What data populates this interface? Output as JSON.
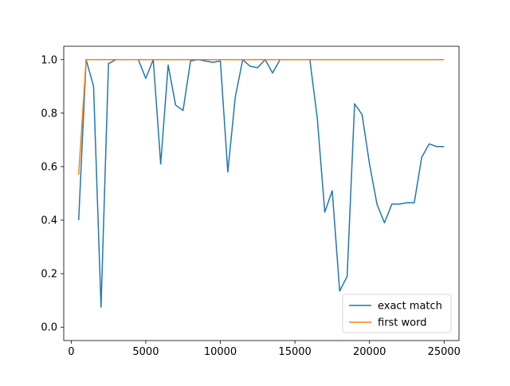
{
  "chart_data": {
    "type": "line",
    "title": "",
    "xlabel": "",
    "ylabel": "",
    "xlim": [
      -500,
      26000
    ],
    "ylim": [
      -0.05,
      1.05
    ],
    "x_ticks": [
      0,
      5000,
      10000,
      15000,
      20000,
      25000
    ],
    "y_ticks": [
      0.0,
      0.2,
      0.4,
      0.6,
      0.8,
      1.0
    ],
    "x_tick_labels": [
      "0",
      "5000",
      "10000",
      "15000",
      "20000",
      "25000"
    ],
    "y_tick_labels": [
      "0.0",
      "0.2",
      "0.4",
      "0.6",
      "0.8",
      "1.0"
    ],
    "grid": false,
    "legend_position": "lower-right",
    "series": [
      {
        "name": "exact match",
        "color": "#1f77b4",
        "x": [
          500,
          1000,
          1500,
          2000,
          2500,
          3000,
          3500,
          4000,
          4500,
          5000,
          5500,
          6000,
          6500,
          7000,
          7500,
          8000,
          8500,
          9000,
          9500,
          10000,
          10500,
          11000,
          11500,
          12000,
          12500,
          13000,
          13500,
          14000,
          14500,
          15000,
          15500,
          16000,
          16500,
          17000,
          17500,
          18000,
          18500,
          19000,
          19500,
          20000,
          20500,
          21000,
          21500,
          22000,
          22500,
          23000,
          23500,
          24000,
          24500,
          25000
        ],
        "y": [
          0.4,
          1.0,
          0.9,
          0.075,
          0.985,
          1.0,
          1.0,
          1.0,
          1.0,
          0.93,
          1.0,
          0.61,
          0.98,
          0.83,
          0.81,
          0.995,
          1.0,
          0.995,
          0.99,
          0.995,
          0.58,
          0.86,
          1.0,
          0.975,
          0.97,
          1.0,
          0.95,
          1.0,
          1.0,
          1.0,
          1.0,
          1.0,
          0.78,
          0.43,
          0.51,
          0.135,
          0.19,
          0.835,
          0.795,
          0.61,
          0.46,
          0.39,
          0.46,
          0.46,
          0.465,
          0.465,
          0.635,
          0.685,
          0.675,
          0.675
        ]
      },
      {
        "name": "first word",
        "color": "#ff7f0e",
        "x": [
          500,
          1000,
          1500,
          2000,
          2500,
          3000,
          3500,
          4000,
          4500,
          5000,
          5500,
          6000,
          6500,
          7000,
          7500,
          8000,
          8500,
          9000,
          9500,
          10000,
          10500,
          11000,
          11500,
          12000,
          12500,
          13000,
          13500,
          14000,
          14500,
          15000,
          15500,
          16000,
          16500,
          17000,
          17500,
          18000,
          18500,
          19000,
          19500,
          20000,
          20500,
          21000,
          21500,
          22000,
          22500,
          23000,
          23500,
          24000,
          24500,
          25000
        ],
        "y": [
          0.57,
          1.0,
          1.0,
          1.0,
          1.0,
          1.0,
          1.0,
          1.0,
          1.0,
          1.0,
          1.0,
          1.0,
          1.0,
          1.0,
          1.0,
          1.0,
          1.0,
          1.0,
          1.0,
          1.0,
          1.0,
          1.0,
          1.0,
          1.0,
          1.0,
          1.0,
          1.0,
          1.0,
          1.0,
          1.0,
          1.0,
          1.0,
          1.0,
          1.0,
          1.0,
          1.0,
          1.0,
          1.0,
          1.0,
          1.0,
          1.0,
          1.0,
          1.0,
          1.0,
          1.0,
          1.0,
          1.0,
          1.0,
          1.0,
          1.0
        ]
      }
    ]
  }
}
